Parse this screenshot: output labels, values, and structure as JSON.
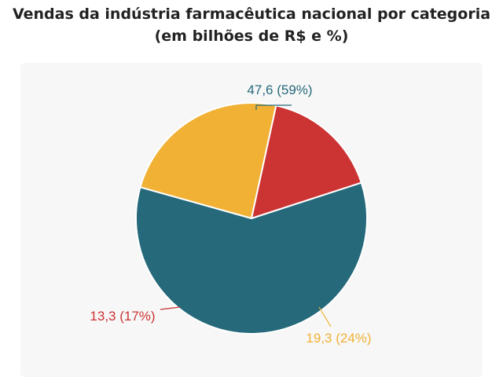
{
  "chart_data": {
    "type": "pie",
    "title": "Vendas da indústria farmacêutica nacional por categoria",
    "subtitle": "(em bilhões de R$ e %)",
    "slices": [
      {
        "value": 47.6,
        "percent": 59,
        "label": "47,6 (59%)",
        "color": "#25697a"
      },
      {
        "value": 19.3,
        "percent": 24,
        "label": "19,3 (24%)",
        "color": "#f0b135"
      },
      {
        "value": 13.3,
        "percent": 17,
        "label": "13,3 (17%)",
        "color": "#cc3333"
      }
    ],
    "legend": false
  }
}
